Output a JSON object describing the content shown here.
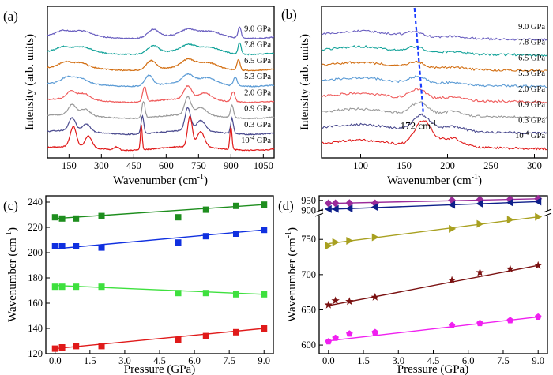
{
  "chart_data": [
    {
      "panel": "(a)",
      "type": "line",
      "ylabel": "Intensity (arb. units)",
      "xlabel": "Wavenumber (cm",
      "xlabel_sup": "-1",
      "xlabel_end": ")",
      "xlim": [
        50,
        1100
      ],
      "xticks": [
        150,
        300,
        450,
        600,
        750,
        900,
        1050
      ],
      "yticks_shown": false,
      "series": [
        {
          "name": "9.0 GPa",
          "color": "#6a5fc0",
          "peaks": [
            [
              120,
              0.3,
              40
            ],
            [
              210,
              0.35,
              60
            ],
            [
              540,
              0.6,
              35
            ],
            [
              700,
              0.4,
              45
            ],
            [
              800,
              0.35,
              70
            ],
            [
              940,
              0.9,
              10
            ]
          ]
        },
        {
          "name": "7.8 GPa",
          "color": "#14a39a",
          "peaks": [
            [
              120,
              0.3,
              40
            ],
            [
              210,
              0.35,
              60
            ],
            [
              540,
              0.6,
              35
            ],
            [
              700,
              0.45,
              45
            ],
            [
              800,
              0.35,
              70
            ],
            [
              940,
              0.9,
              10
            ]
          ]
        },
        {
          "name": "6.5 GPa",
          "color": "#d26d10",
          "peaks": [
            [
              130,
              0.35,
              35
            ],
            [
              200,
              0.35,
              50
            ],
            [
              530,
              0.7,
              30
            ],
            [
              700,
              0.55,
              40
            ],
            [
              790,
              0.4,
              60
            ],
            [
              935,
              0.85,
              10
            ]
          ]
        },
        {
          "name": "5.3 GPa",
          "color": "#5b9bd5",
          "peaks": [
            [
              140,
              0.4,
              35
            ],
            [
              200,
              0.4,
              45
            ],
            [
              520,
              0.8,
              25
            ],
            [
              700,
              0.65,
              35
            ],
            [
              790,
              0.45,
              55
            ],
            [
              920,
              0.7,
              12
            ]
          ]
        },
        {
          "name": "2.0 GPa",
          "color": "#ef5b5b",
          "peaks": [
            [
              160,
              0.6,
              30
            ],
            [
              220,
              0.45,
              35
            ],
            [
              500,
              1.2,
              12
            ],
            [
              700,
              1.0,
              25
            ],
            [
              780,
              0.5,
              40
            ],
            [
              910,
              0.8,
              12
            ]
          ]
        },
        {
          "name": "0.9 GPa",
          "color": "#9a9a9a",
          "peaks": [
            [
              165,
              0.8,
              25
            ],
            [
              225,
              0.5,
              30
            ],
            [
              495,
              1.3,
              10
            ],
            [
              700,
              1.4,
              20
            ],
            [
              760,
              0.6,
              35
            ],
            [
              905,
              1.0,
              10
            ]
          ]
        },
        {
          "name": "0.3 GPa",
          "color": "#4b4b8f",
          "peaks": [
            [
              165,
              1.0,
              22
            ],
            [
              230,
              0.6,
              25
            ],
            [
              490,
              1.4,
              9
            ],
            [
              700,
              1.8,
              18
            ],
            [
              760,
              0.8,
              30
            ],
            [
              905,
              1.2,
              9
            ]
          ]
        },
        {
          "name": "10-4 GPa",
          "name_base": "10",
          "name_sup": "-4",
          "name_tail": " GPa",
          "color": "#e01a1a",
          "peaks": [
            [
              170,
              1.6,
              20
            ],
            [
              240,
              0.9,
              22
            ],
            [
              370,
              0.25,
              15
            ],
            [
              485,
              2.0,
              6
            ],
            [
              710,
              2.4,
              15
            ],
            [
              760,
              1.2,
              25
            ],
            [
              900,
              1.8,
              7
            ]
          ]
        }
      ]
    },
    {
      "panel": "(b)",
      "type": "line",
      "ylabel": "Intensity (arb. units)",
      "xlabel": "Wavenumber (cm",
      "xlabel_sup": "-1",
      "xlabel_end": ")",
      "xlim": [
        55,
        315
      ],
      "xticks": [
        100,
        150,
        200,
        250,
        300
      ],
      "yticks_shown": false,
      "annotation": {
        "text": "172 cm",
        "sup": "-1",
        "x": 172
      },
      "dashed_trend": {
        "points": [
          [
            162,
            0
          ],
          [
            166,
            2
          ],
          [
            170,
            5
          ],
          [
            172,
            7
          ]
        ]
      },
      "series": [
        {
          "name": "9.0 GPa",
          "color": "#6a5fc0",
          "peak_x": 162,
          "peak_h": 0.35
        },
        {
          "name": "7.8 GPa",
          "color": "#14a39a",
          "peak_x": 163,
          "peak_h": 0.4
        },
        {
          "name": "6.5 GPa",
          "color": "#d26d10",
          "peak_x": 164,
          "peak_h": 0.45
        },
        {
          "name": "5.3 GPa",
          "color": "#5b9bd5",
          "peak_x": 165,
          "peak_h": 0.5
        },
        {
          "name": "2.0 GPa",
          "color": "#ef5b5b",
          "peak_x": 166,
          "peak_h": 0.7
        },
        {
          "name": "0.9 GPa",
          "color": "#9a9a9a",
          "peak_x": 168,
          "peak_h": 0.9
        },
        {
          "name": "0.3 GPa",
          "color": "#4b4b8f",
          "peak_x": 170,
          "peak_h": 1.1
        },
        {
          "name": "10-4 GPa",
          "name_base": "10",
          "name_sup": "-4",
          "name_tail": " GPa",
          "color": "#e01a1a",
          "peak_x": 172,
          "peak_h": 1.8
        }
      ]
    },
    {
      "panel": "(c)",
      "type": "scatter",
      "xlabel": "Pressure (GPa)",
      "ylabel": "Wavenumber (cm",
      "ylabel_sup": "-1",
      "ylabel_end": ")",
      "xlim": [
        -0.4,
        9.4
      ],
      "ylim": [
        120,
        245
      ],
      "xticks": [
        0.0,
        1.5,
        3.0,
        4.5,
        6.0,
        7.5,
        9.0
      ],
      "yticks": [
        120,
        140,
        160,
        180,
        200,
        220,
        240
      ],
      "x": [
        0.0,
        0.3,
        0.9,
        2.0,
        5.3,
        6.5,
        7.8,
        9.0
      ],
      "series": [
        {
          "color": "#1e8e1e",
          "marker": "square",
          "values": [
            228,
            227,
            227,
            229,
            228,
            234,
            237,
            238
          ],
          "fit": [
            227,
            238
          ]
        },
        {
          "color": "#1030e0",
          "marker": "square",
          "values": [
            205,
            205,
            205,
            204,
            208,
            213,
            215,
            218
          ],
          "fit": [
            203,
            218
          ]
        },
        {
          "color": "#3ee03e",
          "marker": "square",
          "values": [
            173,
            173,
            173,
            173,
            168,
            168,
            167,
            167
          ],
          "fit": [
            174,
            167
          ]
        },
        {
          "color": "#e01a1a",
          "marker": "square",
          "values": [
            124,
            125,
            126,
            126,
            131,
            134,
            137,
            140
          ],
          "fit": [
            124,
            140
          ]
        }
      ]
    },
    {
      "panel": "(d)",
      "type": "scatter",
      "xlabel": "Pressure (GPa)",
      "ylabel": "Wavenumber (cm",
      "ylabel_sup": "-1",
      "ylabel_end": ")",
      "xlim": [
        -0.4,
        9.4
      ],
      "axis_break": true,
      "ylim_lower": [
        590,
        785
      ],
      "ylim_upper": [
        895,
        965
      ],
      "xticks": [
        0.0,
        1.5,
        3.0,
        4.5,
        6.0,
        7.5,
        9.0
      ],
      "yticks_lower": [
        600,
        650,
        700,
        750
      ],
      "yticks_upper": [
        900,
        950
      ],
      "x": [
        0.0,
        0.3,
        0.9,
        2.0,
        5.3,
        6.5,
        7.8,
        9.0
      ],
      "series": [
        {
          "color": "#9a2a9a",
          "marker": "diamond",
          "upper": true,
          "values": [
            936,
            936,
            937,
            936,
            951,
            954,
            956,
            958
          ],
          "fit": [
            935,
            958
          ]
        },
        {
          "color": "#0e1f8a",
          "marker": "tri-left",
          "upper": true,
          "values": [
            907,
            908,
            910,
            917,
            928,
            934,
            939,
            944
          ],
          "fit": [
            906,
            944
          ]
        },
        {
          "color": "#a8a020",
          "marker": "tri-right",
          "upper": false,
          "values": [
            741,
            746,
            748,
            753,
            765,
            772,
            778,
            782
          ],
          "fit": [
            744,
            782
          ]
        },
        {
          "color": "#7a1010",
          "marker": "star",
          "upper": false,
          "values": [
            657,
            663,
            662,
            668,
            692,
            703,
            708,
            713
          ],
          "fit": [
            656,
            713
          ]
        },
        {
          "color": "#f020f0",
          "marker": "pentagon",
          "upper": false,
          "values": [
            605,
            610,
            616,
            618,
            628,
            631,
            635,
            640
          ],
          "fit": [
            606,
            640
          ]
        }
      ]
    }
  ]
}
